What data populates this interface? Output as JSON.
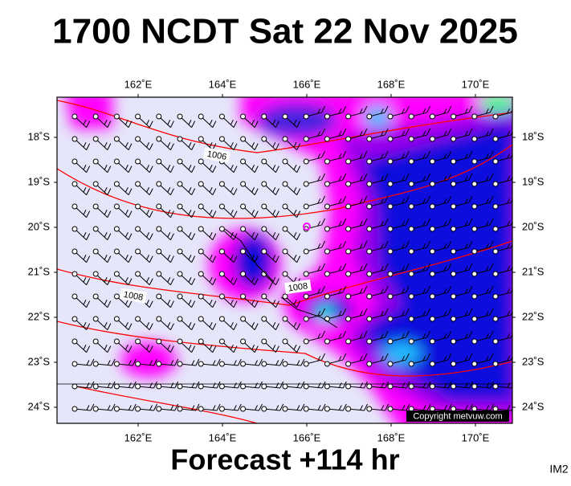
{
  "header": {
    "title": "1700 NCDT Sat 22 Nov 2025"
  },
  "map": {
    "lon_labels": [
      "162˚E",
      "164˚E",
      "166˚E",
      "168˚E",
      "170˚E"
    ],
    "lat_labels": [
      "18˚S",
      "19˚S",
      "20˚S",
      "21˚S",
      "22˚S",
      "23˚S",
      "24˚S"
    ],
    "isobar_labels": [
      "1006",
      "1008",
      "1008"
    ],
    "copyright": "Copyright metvuw.com"
  },
  "footer": {
    "forecast": "Forecast +114 hr",
    "image_id": "IM2"
  }
}
